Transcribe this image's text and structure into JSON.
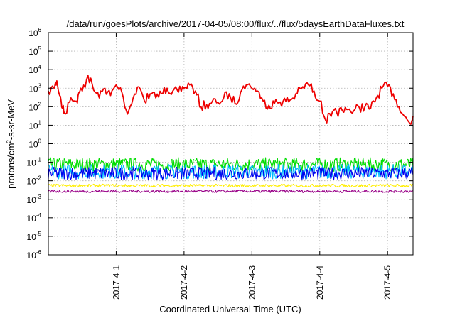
{
  "chart_data": {
    "type": "line",
    "title": "/data/run/goesPlots/archive/2017-04-05/08:00/flux/../flux/5daysEarthDataFluxes.txt",
    "xlabel": "Coordinated Universal Time (UTC)",
    "ylabel": "protons/cm2-s-sr-MeV",
    "ylabel_parts": {
      "base": "protons/cm",
      "sup": "2",
      "rest": "-s-sr-MeV"
    },
    "y_scale": "log",
    "ylim_exponents": [
      -6,
      6
    ],
    "y_tick_base": "10",
    "y_tick_exponents": [
      "6",
      "5",
      "4",
      "3",
      "2",
      "1",
      "0",
      "-1",
      "-2",
      "-3",
      "-4",
      "-5",
      "-6"
    ],
    "x_range_days": [
      "2017-03-31T00:00",
      "2017-04-05T09:00"
    ],
    "x_ticks": [
      "2017-4-1",
      "2017-4-2",
      "2017-4-3",
      "2017-4-4",
      "2017-4-5"
    ],
    "grid": true,
    "legend": "none",
    "series": [
      {
        "color": "#ee0000",
        "x": [
          "03-31T00:00",
          "03-31T02:00",
          "03-31T03:00",
          "03-31T04:00",
          "03-31T05:00",
          "03-31T06:00",
          "03-31T08:00",
          "03-31T10:00",
          "03-31T11:00",
          "03-31T12:00",
          "03-31T14:00",
          "03-31T16:00",
          "03-31T18:00",
          "03-31T20:00",
          "03-31T22:00",
          "04-01T00:00",
          "04-01T02:00",
          "04-01T04:00",
          "04-01T06:00",
          "04-01T08:00",
          "04-01T10:00",
          "04-01T12:00",
          "04-01T14:00",
          "04-01T16:00",
          "04-01T18:00",
          "04-01T20:00",
          "04-01T22:00",
          "04-02T00:00",
          "04-02T02:00",
          "04-02T04:00",
          "04-02T06:00",
          "04-02T08:00",
          "04-02T10:00",
          "04-02T12:00",
          "04-02T14:00",
          "04-02T16:00",
          "04-02T18:00",
          "04-02T20:00",
          "04-02T22:00",
          "04-03T00:00",
          "04-03T02:00",
          "04-03T04:00",
          "04-03T06:00",
          "04-03T08:00",
          "04-03T10:00",
          "04-03T12:00",
          "04-03T14:00",
          "04-03T16:00",
          "04-03T18:00",
          "04-03T20:00",
          "04-03T22:00",
          "04-04T00:00",
          "04-04T02:00",
          "04-04T04:00",
          "04-04T06:00",
          "04-04T08:00",
          "04-04T10:00",
          "04-04T12:00",
          "04-04T14:00",
          "04-04T16:00",
          "04-04T18:00",
          "04-04T20:00",
          "04-04T22:00",
          "04-05T00:00",
          "04-05T02:00",
          "04-05T04:00",
          "04-05T06:00",
          "04-05T08:00",
          "04-05T09:00"
        ],
        "y": [
          700,
          1000,
          2500,
          400,
          80,
          40,
          300,
          200,
          600,
          700,
          5000,
          800,
          300,
          1000,
          400,
          1500,
          600,
          40,
          300,
          1200,
          200,
          500,
          300,
          500,
          1000,
          700,
          600,
          1000,
          1500,
          700,
          100,
          130,
          200,
          170,
          300,
          500,
          150,
          600,
          1500,
          1000,
          700,
          200,
          120,
          150,
          180,
          200,
          250,
          500,
          1200,
          1500,
          700,
          200,
          20,
          30,
          50,
          60,
          70,
          60,
          90,
          100,
          80,
          300,
          1000,
          1200,
          500,
          100,
          30,
          12,
          30
        ]
      },
      {
        "color": "#00dd00",
        "x": [
          "03-31T00:00",
          "04-05T09:00"
        ],
        "y": [
          0.08,
          0.08
        ],
        "noise_decades": [
          -0.4,
          0.35
        ]
      },
      {
        "color": "#00bbff",
        "x": [
          "03-31T00:00",
          "04-05T09:00"
        ],
        "y": [
          0.04,
          0.04
        ],
        "noise_decades": [
          -0.5,
          0.3
        ]
      },
      {
        "color": "#0000ee",
        "x": [
          "03-31T00:00",
          "04-05T09:00"
        ],
        "y": [
          0.025,
          0.025
        ],
        "noise_decades": [
          -0.35,
          0.35
        ]
      },
      {
        "color": "#ffee00",
        "x": [
          "03-31T00:00",
          "04-05T09:00"
        ],
        "y": [
          0.0055,
          0.0055
        ],
        "noise_decades": [
          -0.08,
          0.08
        ]
      },
      {
        "color": "#990088",
        "x": [
          "03-31T00:00",
          "04-05T09:00"
        ],
        "y": [
          0.0027,
          0.0027
        ],
        "noise_decades": [
          -0.07,
          0.07
        ]
      }
    ]
  }
}
